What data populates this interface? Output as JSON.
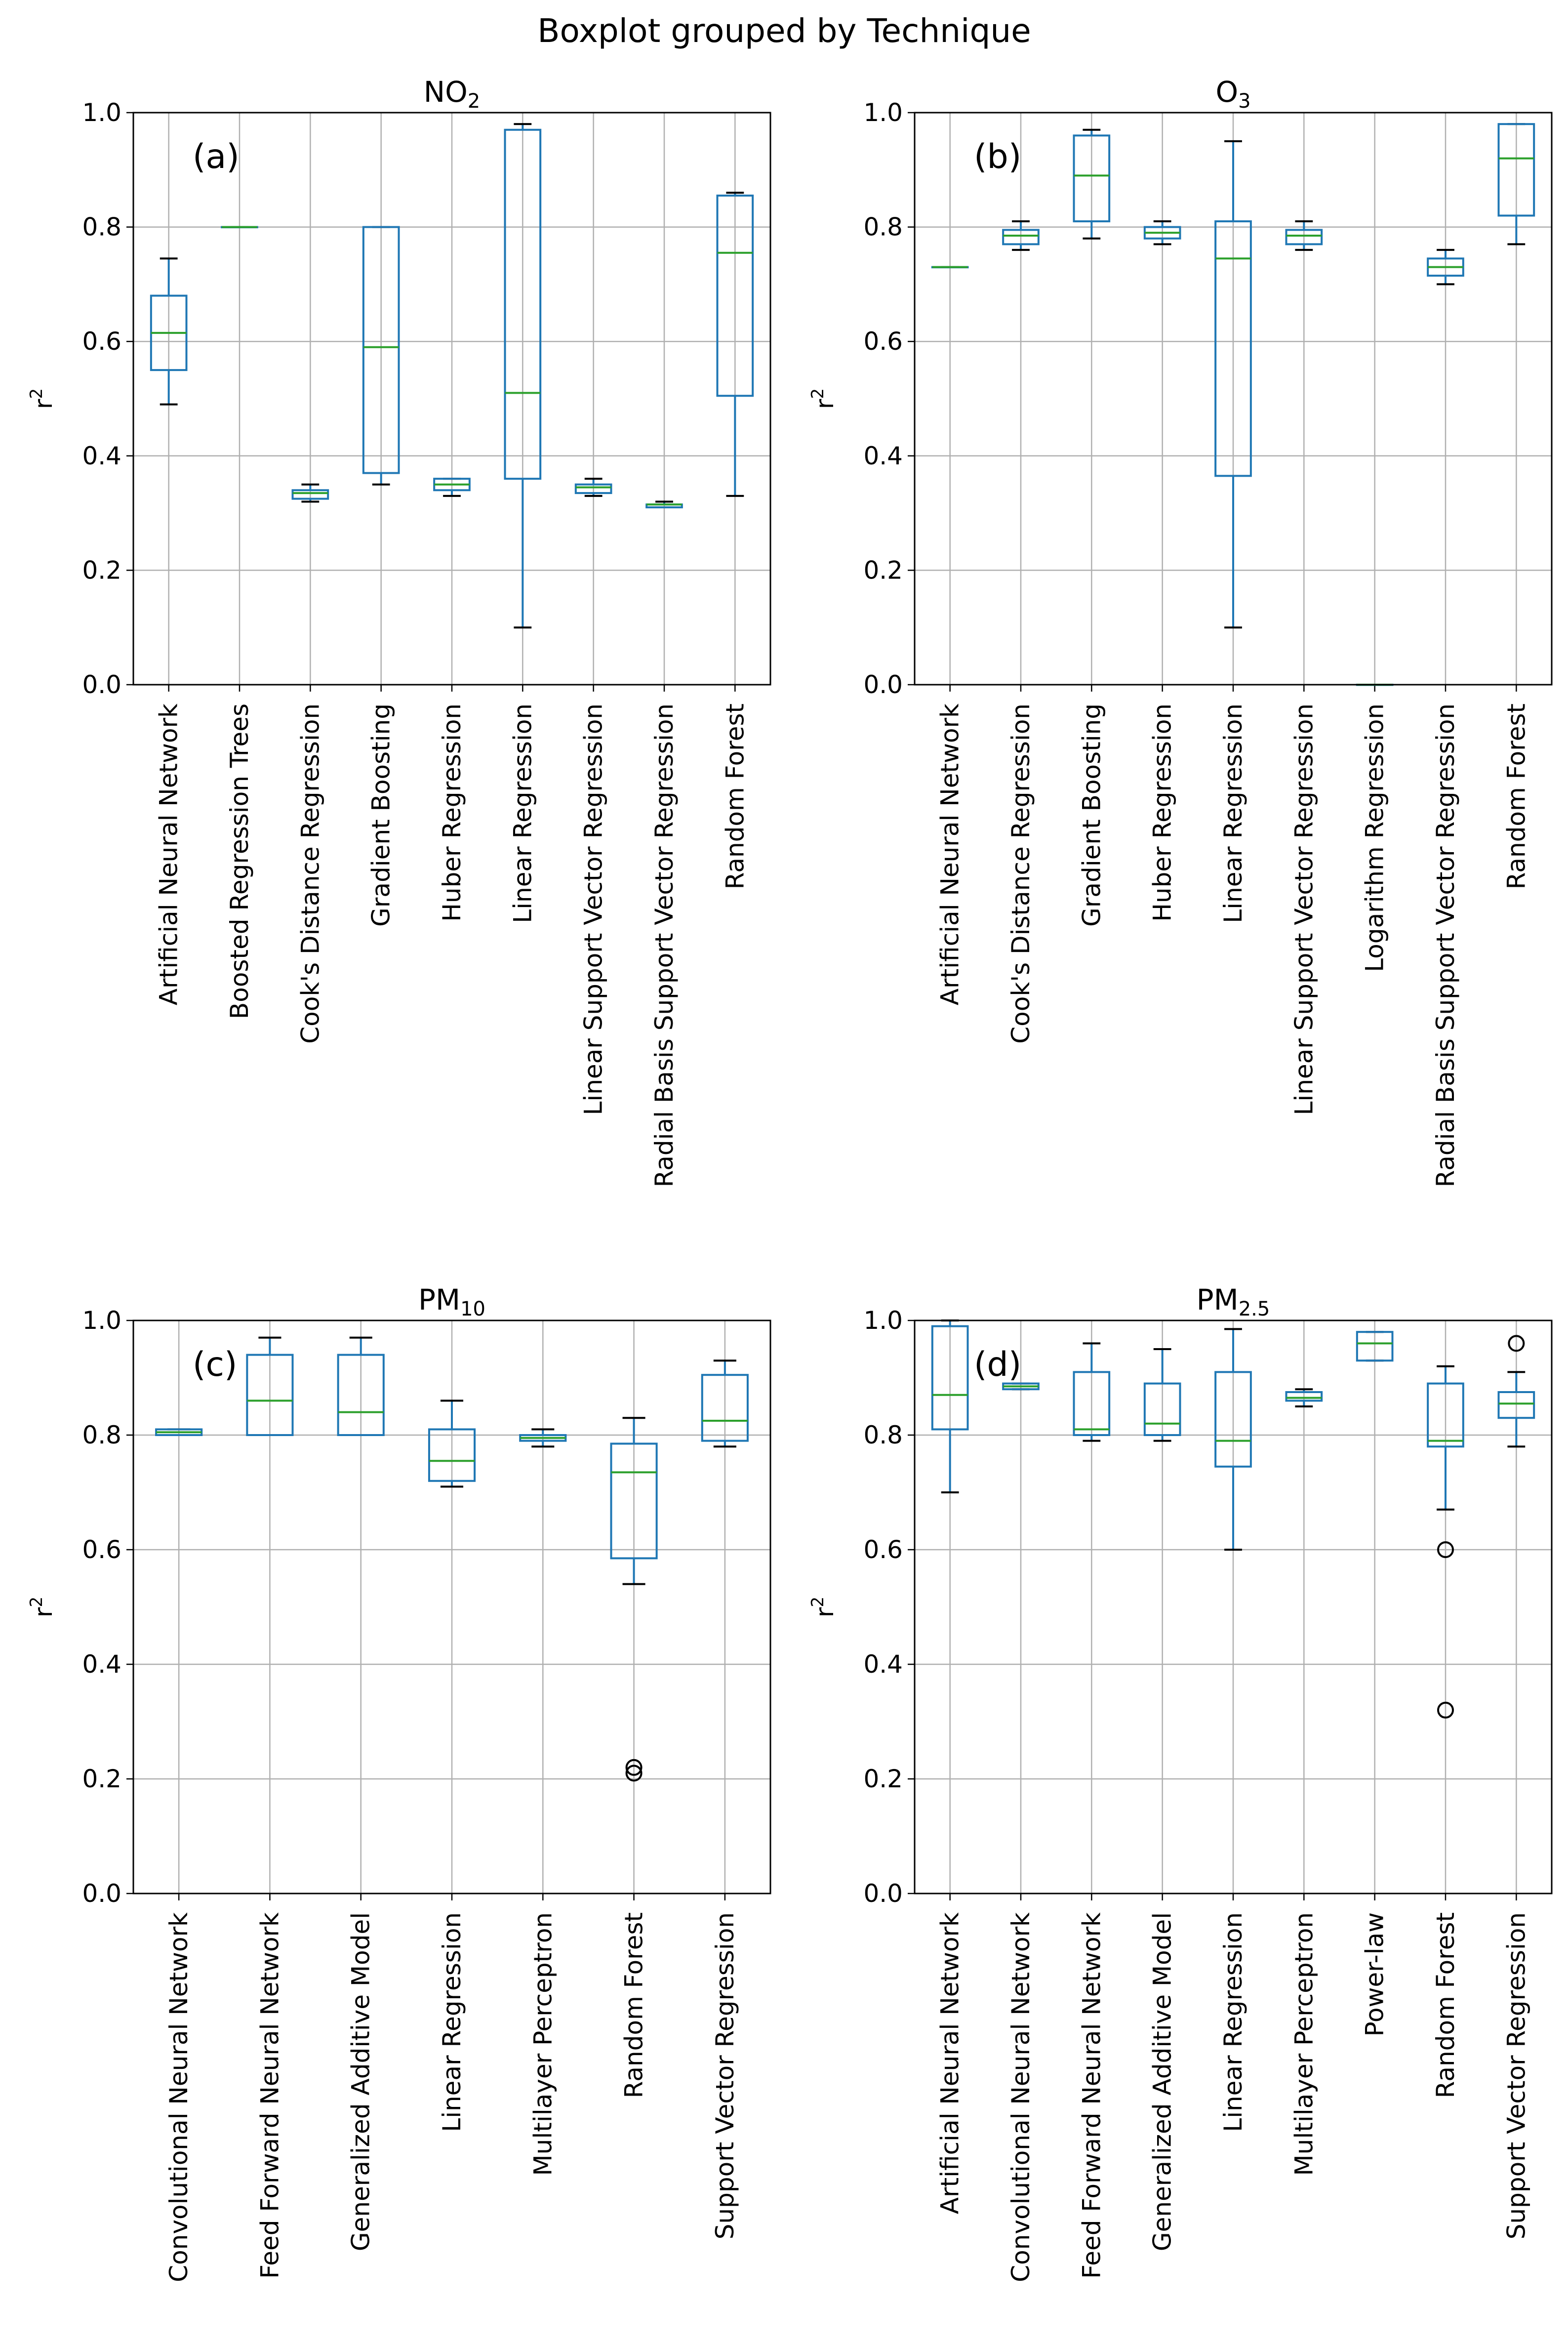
{
  "figure": {
    "title": "Boxplot grouped by Technique"
  },
  "colors": {
    "box": "#1f77b4",
    "median": "#2ca02c",
    "whisker": "#000000",
    "grid": "#b0b0b0",
    "axes": "#000000",
    "flier": "#000000"
  },
  "chart_data": [
    {
      "type": "boxplot",
      "title": "NO₂",
      "title_base": "NO",
      "title_sub": "2",
      "panel_label": "(a)",
      "xlabel": "",
      "ylabel": "r",
      "ylabel_sup": "2",
      "ylim": [
        0.0,
        1.0
      ],
      "yticks": [
        "0.0",
        "0.2",
        "0.4",
        "0.6",
        "0.8",
        "1.0"
      ],
      "grid": true,
      "categories": [
        "Artificial Neural Network",
        "Boosted Regression Trees",
        "Cook's Distance Regression",
        "Gradient Boosting",
        "Huber Regression",
        "Linear Regression",
        "Linear Support Vector Regression",
        "Radial Basis Support Vector Regression",
        "Random Forest"
      ],
      "boxes": [
        {
          "whislo": 0.49,
          "q1": 0.55,
          "med": 0.615,
          "q3": 0.68,
          "whishi": 0.745,
          "fliers": []
        },
        {
          "whislo": 0.8,
          "q1": 0.8,
          "med": 0.8,
          "q3": 0.8,
          "whishi": 0.8,
          "fliers": []
        },
        {
          "whislo": 0.32,
          "q1": 0.325,
          "med": 0.335,
          "q3": 0.34,
          "whishi": 0.35,
          "fliers": []
        },
        {
          "whislo": 0.35,
          "q1": 0.37,
          "med": 0.59,
          "q3": 0.8,
          "whishi": 0.8,
          "fliers": []
        },
        {
          "whislo": 0.33,
          "q1": 0.34,
          "med": 0.35,
          "q3": 0.36,
          "whishi": 0.36,
          "fliers": []
        },
        {
          "whislo": 0.1,
          "q1": 0.36,
          "med": 0.51,
          "q3": 0.97,
          "whishi": 0.98,
          "fliers": []
        },
        {
          "whislo": 0.33,
          "q1": 0.335,
          "med": 0.345,
          "q3": 0.35,
          "whishi": 0.36,
          "fliers": []
        },
        {
          "whislo": 0.31,
          "q1": 0.31,
          "med": 0.315,
          "q3": 0.315,
          "whishi": 0.32,
          "fliers": []
        },
        {
          "whislo": 0.33,
          "q1": 0.505,
          "med": 0.755,
          "q3": 0.855,
          "whishi": 0.86,
          "fliers": []
        }
      ]
    },
    {
      "type": "boxplot",
      "title": "O₃",
      "title_base": "O",
      "title_sub": "3",
      "panel_label": "(b)",
      "xlabel": "",
      "ylabel": "r",
      "ylabel_sup": "2",
      "ylim": [
        0.0,
        1.0
      ],
      "yticks": [
        "0.0",
        "0.2",
        "0.4",
        "0.6",
        "0.8",
        "1.0"
      ],
      "grid": true,
      "categories": [
        "Artificial Neural Network",
        "Cook's Distance Regression",
        "Gradient Boosting",
        "Huber Regression",
        "Linear Regression",
        "Linear Support Vector Regression",
        "Logarithm Regression",
        "Radial Basis Support Vector Regression",
        "Random Forest"
      ],
      "boxes": [
        {
          "whislo": 0.73,
          "q1": 0.73,
          "med": 0.73,
          "q3": 0.73,
          "whishi": 0.73,
          "fliers": []
        },
        {
          "whislo": 0.76,
          "q1": 0.77,
          "med": 0.785,
          "q3": 0.795,
          "whishi": 0.81,
          "fliers": []
        },
        {
          "whislo": 0.78,
          "q1": 0.81,
          "med": 0.89,
          "q3": 0.96,
          "whishi": 0.97,
          "fliers": []
        },
        {
          "whislo": 0.77,
          "q1": 0.78,
          "med": 0.79,
          "q3": 0.8,
          "whishi": 0.81,
          "fliers": []
        },
        {
          "whislo": 0.1,
          "q1": 0.365,
          "med": 0.745,
          "q3": 0.81,
          "whishi": 0.95,
          "fliers": []
        },
        {
          "whislo": 0.76,
          "q1": 0.77,
          "med": 0.785,
          "q3": 0.795,
          "whishi": 0.81,
          "fliers": []
        },
        {
          "whislo": 0.0,
          "q1": 0.0,
          "med": 0.0,
          "q3": 0.0,
          "whishi": 0.0,
          "fliers": []
        },
        {
          "whislo": 0.7,
          "q1": 0.715,
          "med": 0.73,
          "q3": 0.745,
          "whishi": 0.76,
          "fliers": []
        },
        {
          "whislo": 0.77,
          "q1": 0.82,
          "med": 0.92,
          "q3": 0.98,
          "whishi": 0.98,
          "fliers": []
        }
      ]
    },
    {
      "type": "boxplot",
      "title": "PM₁₀",
      "title_base": "PM",
      "title_sub": "10",
      "panel_label": "(c)",
      "xlabel": "",
      "ylabel": "r",
      "ylabel_sup": "2",
      "ylim": [
        0.0,
        1.0
      ],
      "yticks": [
        "0.0",
        "0.2",
        "0.4",
        "0.6",
        "0.8",
        "1.0"
      ],
      "grid": true,
      "categories": [
        "Convolutional Neural Network",
        "Feed Forward Neural Network",
        "Generalized Additive Model",
        "Linear Regression",
        "Multilayer Perceptron",
        "Random Forest",
        "Support Vector Regression"
      ],
      "boxes": [
        {
          "whislo": 0.8,
          "q1": 0.8,
          "med": 0.805,
          "q3": 0.81,
          "whishi": 0.81,
          "fliers": []
        },
        {
          "whislo": 0.8,
          "q1": 0.8,
          "med": 0.86,
          "q3": 0.94,
          "whishi": 0.97,
          "fliers": []
        },
        {
          "whislo": 0.8,
          "q1": 0.8,
          "med": 0.84,
          "q3": 0.94,
          "whishi": 0.97,
          "fliers": []
        },
        {
          "whislo": 0.71,
          "q1": 0.72,
          "med": 0.755,
          "q3": 0.81,
          "whishi": 0.86,
          "fliers": []
        },
        {
          "whislo": 0.78,
          "q1": 0.79,
          "med": 0.795,
          "q3": 0.8,
          "whishi": 0.81,
          "fliers": []
        },
        {
          "whislo": 0.54,
          "q1": 0.585,
          "med": 0.735,
          "q3": 0.785,
          "whishi": 0.83,
          "fliers": [
            0.21,
            0.22
          ]
        },
        {
          "whislo": 0.78,
          "q1": 0.79,
          "med": 0.825,
          "q3": 0.905,
          "whishi": 0.93,
          "fliers": []
        }
      ]
    },
    {
      "type": "boxplot",
      "title": "PM₂.₅",
      "title_base": "PM",
      "title_sub": "2.5",
      "panel_label": "(d)",
      "xlabel": "",
      "ylabel": "r",
      "ylabel_sup": "2",
      "ylim": [
        0.0,
        1.0
      ],
      "yticks": [
        "0.0",
        "0.2",
        "0.4",
        "0.6",
        "0.8",
        "1.0"
      ],
      "grid": true,
      "categories": [
        "Artificial Neural Network",
        "Convolutional Neural Network",
        "Feed Forward Neural Network",
        "Generalized Additive Model",
        "Linear Regression",
        "Multilayer Perceptron",
        "Power-law",
        "Random Forest",
        "Support Vector Regression"
      ],
      "boxes": [
        {
          "whislo": 0.7,
          "q1": 0.81,
          "med": 0.87,
          "q3": 0.99,
          "whishi": 1.0,
          "fliers": []
        },
        {
          "whislo": 0.88,
          "q1": 0.88,
          "med": 0.885,
          "q3": 0.89,
          "whishi": 0.89,
          "fliers": []
        },
        {
          "whislo": 0.79,
          "q1": 0.8,
          "med": 0.81,
          "q3": 0.91,
          "whishi": 0.96,
          "fliers": []
        },
        {
          "whislo": 0.79,
          "q1": 0.8,
          "med": 0.82,
          "q3": 0.89,
          "whishi": 0.95,
          "fliers": []
        },
        {
          "whislo": 0.6,
          "q1": 0.745,
          "med": 0.79,
          "q3": 0.91,
          "whishi": 0.985,
          "fliers": []
        },
        {
          "whislo": 0.85,
          "q1": 0.86,
          "med": 0.865,
          "q3": 0.875,
          "whishi": 0.88,
          "fliers": []
        },
        {
          "whislo": 0.93,
          "q1": 0.93,
          "med": 0.96,
          "q3": 0.98,
          "whishi": 0.98,
          "fliers": []
        },
        {
          "whislo": 0.67,
          "q1": 0.78,
          "med": 0.79,
          "q3": 0.89,
          "whishi": 0.92,
          "fliers": [
            0.32,
            0.6
          ]
        },
        {
          "whislo": 0.78,
          "q1": 0.83,
          "med": 0.855,
          "q3": 0.875,
          "whishi": 0.91,
          "fliers": [
            0.96
          ]
        }
      ]
    }
  ]
}
